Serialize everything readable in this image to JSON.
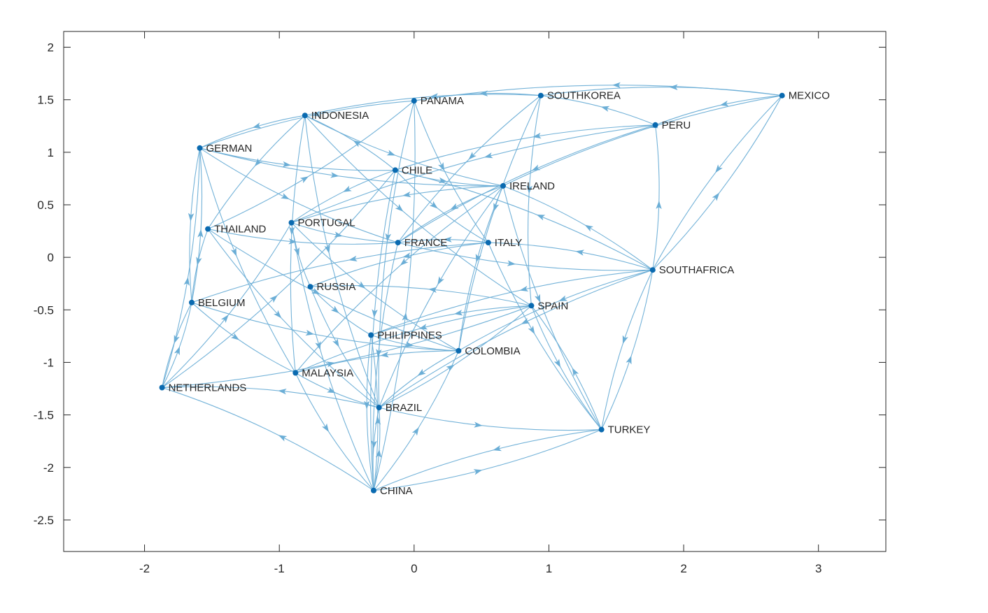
{
  "chart_data": {
    "type": "network graph",
    "title": "",
    "xlabel": "",
    "ylabel": "",
    "xlim": [
      -2.6,
      3.5
    ],
    "ylim": [
      -2.8,
      2.15
    ],
    "x_ticks": [
      "-2",
      "-1",
      "0",
      "1",
      "2",
      "3"
    ],
    "y_ticks": [
      "2",
      "1.5",
      "1",
      "0.5",
      "0",
      "-0.5",
      "-1",
      "-1.5",
      "-2",
      "-2.5"
    ],
    "x_tick_values": [
      -2,
      -1,
      0,
      1,
      2,
      3
    ],
    "y_tick_values": [
      2,
      1.5,
      1,
      0.5,
      0,
      -0.5,
      -1,
      -1.5,
      -2,
      -2.5
    ],
    "edge_color": "#6baed6",
    "node_color": "#0a6ab0",
    "box": true,
    "grid": false,
    "nodes": [
      {
        "name": "PANAMA",
        "x": 0.0,
        "y": 1.49
      },
      {
        "name": "SOUTHKOREA",
        "x": 0.94,
        "y": 1.54
      },
      {
        "name": "MEXICO",
        "x": 2.73,
        "y": 1.54
      },
      {
        "name": "INDONESIA",
        "x": -0.81,
        "y": 1.35
      },
      {
        "name": "PERU",
        "x": 1.79,
        "y": 1.26
      },
      {
        "name": "GERMAN",
        "x": -1.59,
        "y": 1.04
      },
      {
        "name": "CHILE",
        "x": -0.14,
        "y": 0.83
      },
      {
        "name": "IRELAND",
        "x": 0.66,
        "y": 0.68
      },
      {
        "name": "PORTUGAL",
        "x": -0.91,
        "y": 0.33
      },
      {
        "name": "THAILAND",
        "x": -1.53,
        "y": 0.27
      },
      {
        "name": "FRANCE",
        "x": -0.12,
        "y": 0.14
      },
      {
        "name": "ITALY",
        "x": 0.55,
        "y": 0.14
      },
      {
        "name": "SOUTHAFRICA",
        "x": 1.77,
        "y": -0.12
      },
      {
        "name": "RUSSIA",
        "x": -0.77,
        "y": -0.28
      },
      {
        "name": "BELGIUM",
        "x": -1.65,
        "y": -0.43
      },
      {
        "name": "SPAIN",
        "x": 0.87,
        "y": -0.46
      },
      {
        "name": "PHILIPPINES",
        "x": -0.32,
        "y": -0.74
      },
      {
        "name": "COLOMBIA",
        "x": 0.33,
        "y": -0.89
      },
      {
        "name": "MALAYSIA",
        "x": -0.88,
        "y": -1.1
      },
      {
        "name": "NETHERLANDS",
        "x": -1.87,
        "y": -1.24
      },
      {
        "name": "BRAZIL",
        "x": -0.26,
        "y": -1.43
      },
      {
        "name": "TURKEY",
        "x": 1.39,
        "y": -1.64
      },
      {
        "name": "CHINA",
        "x": -0.3,
        "y": -2.22
      }
    ],
    "edges": [
      {
        "from": "MEXICO",
        "to": "SOUTHKOREA"
      },
      {
        "from": "MEXICO",
        "to": "PERU"
      },
      {
        "from": "MEXICO",
        "to": "IRELAND"
      },
      {
        "from": "MEXICO",
        "to": "PANAMA"
      },
      {
        "from": "SOUTHAFRICA",
        "to": "MEXICO"
      },
      {
        "from": "MEXICO",
        "to": "SOUTHAFRICA"
      },
      {
        "from": "SOUTHAFRICA",
        "to": "PERU"
      },
      {
        "from": "PERU",
        "to": "SOUTHKOREA"
      },
      {
        "from": "PERU",
        "to": "CHILE"
      },
      {
        "from": "PERU",
        "to": "FRANCE"
      },
      {
        "from": "PERU",
        "to": "PORTUGAL"
      },
      {
        "from": "SOUTHKOREA",
        "to": "INDONESIA"
      },
      {
        "from": "SOUTHKOREA",
        "to": "PANAMA"
      },
      {
        "from": "SOUTHKOREA",
        "to": "FRANCE"
      },
      {
        "from": "SOUTHKOREA",
        "to": "SPAIN"
      },
      {
        "from": "SOUTHKOREA",
        "to": "COLOMBIA"
      },
      {
        "from": "PANAMA",
        "to": "GERMAN"
      },
      {
        "from": "PANAMA",
        "to": "BRAZIL"
      },
      {
        "from": "PANAMA",
        "to": "ITALY"
      },
      {
        "from": "CHINA",
        "to": "PANAMA"
      },
      {
        "from": "INDONESIA",
        "to": "GERMAN"
      },
      {
        "from": "INDONESIA",
        "to": "THAILAND"
      },
      {
        "from": "INDONESIA",
        "to": "IRELAND"
      },
      {
        "from": "INDONESIA",
        "to": "BRAZIL"
      },
      {
        "from": "INDONESIA",
        "to": "MALAYSIA"
      },
      {
        "from": "INDONESIA",
        "to": "SPAIN"
      },
      {
        "from": "CHILE",
        "to": "INDONESIA"
      },
      {
        "from": "GERMAN",
        "to": "CHILE"
      },
      {
        "from": "GERMAN",
        "to": "IRELAND"
      },
      {
        "from": "GERMAN",
        "to": "BELGIUM"
      },
      {
        "from": "NETHERLANDS",
        "to": "GERMAN"
      },
      {
        "from": "BELGIUM",
        "to": "GERMAN"
      },
      {
        "from": "GERMAN",
        "to": "FRANCE"
      },
      {
        "from": "GERMAN",
        "to": "MALAYSIA"
      },
      {
        "from": "CHILE",
        "to": "IRELAND"
      },
      {
        "from": "CHILE",
        "to": "CHINA"
      },
      {
        "from": "CHILE",
        "to": "ITALY"
      },
      {
        "from": "CHILE",
        "to": "PORTUGAL"
      },
      {
        "from": "IRELAND",
        "to": "PORTUGAL"
      },
      {
        "from": "IRELAND",
        "to": "FRANCE"
      },
      {
        "from": "IRELAND",
        "to": "BRAZIL"
      },
      {
        "from": "IRELAND",
        "to": "COLOMBIA"
      },
      {
        "from": "IRELAND",
        "to": "TURKEY"
      },
      {
        "from": "IRELAND",
        "to": "MALAYSIA"
      },
      {
        "from": "SOUTHAFRICA",
        "to": "IRELAND"
      },
      {
        "from": "PORTUGAL",
        "to": "FRANCE"
      },
      {
        "from": "PORTUGAL",
        "to": "RUSSIA"
      },
      {
        "from": "PORTUGAL",
        "to": "CHINA"
      },
      {
        "from": "PORTUGAL",
        "to": "COLOMBIA"
      },
      {
        "from": "THAILAND",
        "to": "PANAMA"
      },
      {
        "from": "THAILAND",
        "to": "FRANCE"
      },
      {
        "from": "THAILAND",
        "to": "BELGIUM"
      },
      {
        "from": "THAILAND",
        "to": "BRAZIL"
      },
      {
        "from": "THAILAND",
        "to": "COLOMBIA"
      },
      {
        "from": "FRANCE",
        "to": "SOUTHAFRICA"
      },
      {
        "from": "FRANCE",
        "to": "CHINA"
      },
      {
        "from": "ITALY",
        "to": "FRANCE"
      },
      {
        "from": "ITALY",
        "to": "RUSSIA"
      },
      {
        "from": "ITALY",
        "to": "TURKEY"
      },
      {
        "from": "ITALY",
        "to": "BELGIUM"
      },
      {
        "from": "SOUTHAFRICA",
        "to": "ITALY"
      },
      {
        "from": "SOUTHAFRICA",
        "to": "CHILE"
      },
      {
        "from": "SOUTHAFRICA",
        "to": "COLOMBIA"
      },
      {
        "from": "SOUTHAFRICA",
        "to": "BRAZIL"
      },
      {
        "from": "SOUTHAFRICA",
        "to": "PHILIPPINES"
      },
      {
        "from": "TURKEY",
        "to": "SOUTHAFRICA"
      },
      {
        "from": "SOUTHAFRICA",
        "to": "TURKEY"
      },
      {
        "from": "SPAIN",
        "to": "RUSSIA"
      },
      {
        "from": "SPAIN",
        "to": "PHILIPPINES"
      },
      {
        "from": "SPAIN",
        "to": "TURKEY"
      },
      {
        "from": "TURKEY",
        "to": "SPAIN"
      },
      {
        "from": "SPAIN",
        "to": "MALAYSIA"
      },
      {
        "from": "RUSSIA",
        "to": "PHILIPPINES"
      },
      {
        "from": "RUSSIA",
        "to": "BRAZIL"
      },
      {
        "from": "BELGIUM",
        "to": "COLOMBIA"
      },
      {
        "from": "BELGIUM",
        "to": "MALAYSIA"
      },
      {
        "from": "NETHERLANDS",
        "to": "BELGIUM"
      },
      {
        "from": "BELGIUM",
        "to": "NETHERLANDS"
      },
      {
        "from": "NETHERLANDS",
        "to": "PORTUGAL"
      },
      {
        "from": "NETHERLANDS",
        "to": "SPAIN"
      },
      {
        "from": "NETHERLANDS",
        "to": "CHILE"
      },
      {
        "from": "BRAZIL",
        "to": "NETHERLANDS"
      },
      {
        "from": "CHINA",
        "to": "NETHERLANDS"
      },
      {
        "from": "PHILIPPINES",
        "to": "COLOMBIA"
      },
      {
        "from": "PHILIPPINES",
        "to": "CHINA"
      },
      {
        "from": "CHINA",
        "to": "PHILIPPINES"
      },
      {
        "from": "COLOMBIA",
        "to": "BRAZIL"
      },
      {
        "from": "COLOMBIA",
        "to": "MALAYSIA"
      },
      {
        "from": "BRAZIL",
        "to": "SPAIN"
      },
      {
        "from": "MALAYSIA",
        "to": "BRAZIL"
      },
      {
        "from": "MALAYSIA",
        "to": "CHINA"
      },
      {
        "from": "BRAZIL",
        "to": "TURKEY"
      },
      {
        "from": "TURKEY",
        "to": "CHINA"
      },
      {
        "from": "CHINA",
        "to": "TURKEY"
      },
      {
        "from": "BRAZIL",
        "to": "CHINA"
      },
      {
        "from": "CHINA",
        "to": "BRAZIL"
      },
      {
        "from": "CHINA",
        "to": "COLOMBIA"
      }
    ]
  }
}
